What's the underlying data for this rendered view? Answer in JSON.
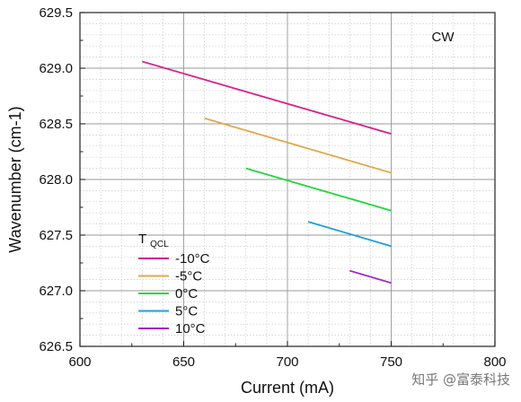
{
  "chart_data": {
    "type": "line",
    "xlabel": "Current (mA)",
    "ylabel": "Wavenumber (cm-1)",
    "xlim": [
      600,
      800
    ],
    "ylim": [
      626.5,
      629.5
    ],
    "xticks": [
      "600",
      "650",
      "700",
      "750",
      "800"
    ],
    "yticks": [
      "626.5",
      "627.0",
      "627.5",
      "628.0",
      "628.5",
      "629.0",
      "629.5"
    ],
    "grid": true,
    "annotation": "CW",
    "legend_title": "TQCL",
    "legend_title_main": "T",
    "legend_title_sub": "QCL",
    "legend_position": "bottom-left",
    "series": [
      {
        "name": "-10°C",
        "color": "#d6208c",
        "x": [
          630,
          750
        ],
        "y": [
          629.06,
          628.41
        ]
      },
      {
        "name": "-5°C",
        "color": "#e0a84a",
        "x": [
          660,
          750
        ],
        "y": [
          628.55,
          628.06
        ]
      },
      {
        "name": "0°C",
        "color": "#22d63a",
        "x": [
          680,
          750
        ],
        "y": [
          628.1,
          627.72
        ]
      },
      {
        "name": "5°C",
        "color": "#1e9fe0",
        "x": [
          710,
          750
        ],
        "y": [
          627.62,
          627.4
        ]
      },
      {
        "name": "10°C",
        "color": "#9b22c8",
        "x": [
          730,
          750
        ],
        "y": [
          627.18,
          627.07
        ]
      }
    ]
  },
  "watermark": "知乎 @富泰科技"
}
